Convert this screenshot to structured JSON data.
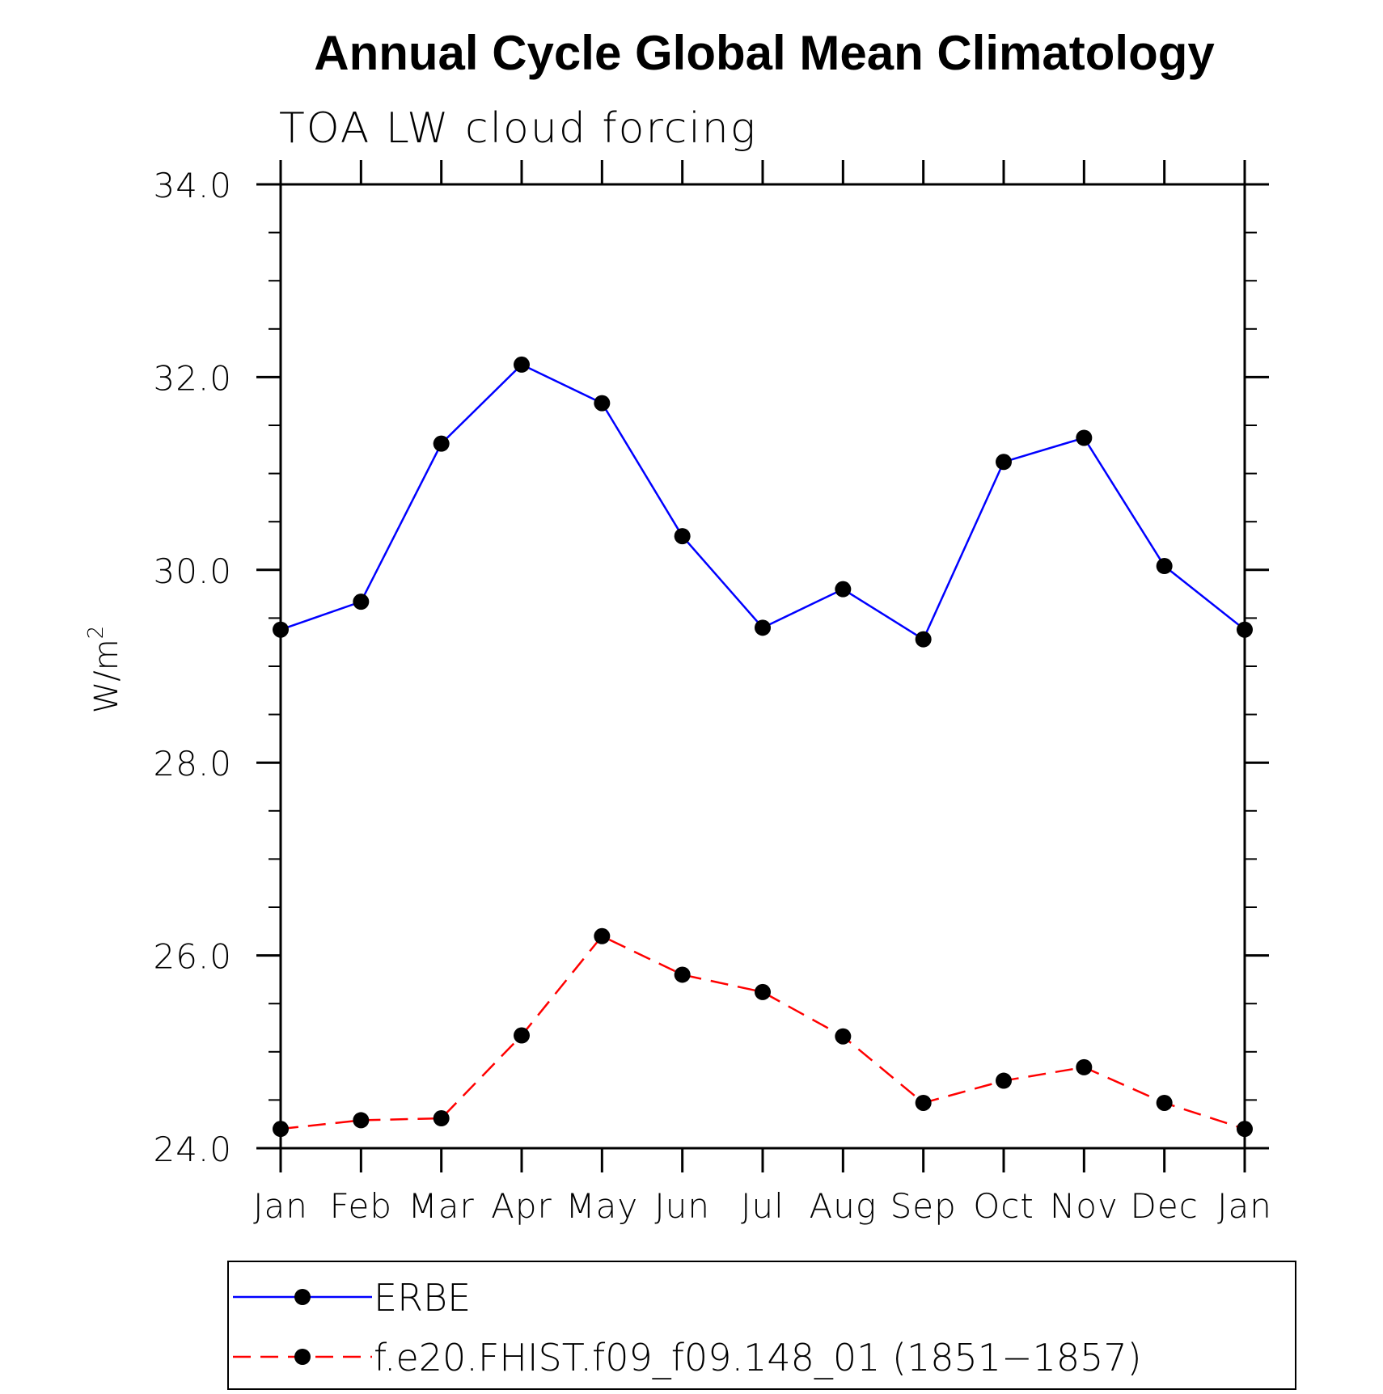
{
  "chart_data": {
    "type": "line",
    "title": "Annual Cycle Global Mean Climatology",
    "subtitle": "TOA LW cloud forcing",
    "ylabel": "W/m",
    "ylabel_superscript": "2",
    "xlabel": "",
    "categories": [
      "Jan",
      "Feb",
      "Mar",
      "Apr",
      "May",
      "Jun",
      "Jul",
      "Aug",
      "Sep",
      "Oct",
      "Nov",
      "Dec",
      "Jan"
    ],
    "ylim": [
      24.0,
      34.0
    ],
    "yticks": [
      "24.0",
      "26.0",
      "28.0",
      "30.0",
      "32.0",
      "34.0"
    ],
    "ytick_values": [
      24,
      26,
      28,
      30,
      32,
      34
    ],
    "grid": false,
    "legend_position": "bottom",
    "series": [
      {
        "name": "ERBE",
        "color": "#0000ff",
        "dash": "solid",
        "values": [
          29.38,
          29.67,
          31.31,
          32.13,
          31.73,
          30.35,
          29.4,
          29.8,
          29.28,
          31.12,
          31.37,
          30.04,
          29.38
        ]
      },
      {
        "name": "f.e20.FHIST.f09_f09.148_01 (1851−1857)",
        "color": "#ff0000",
        "dash": "dashed",
        "values": [
          24.2,
          24.29,
          24.31,
          25.17,
          26.2,
          25.8,
          25.62,
          25.16,
          24.47,
          24.7,
          24.84,
          24.47,
          24.2
        ]
      }
    ]
  }
}
